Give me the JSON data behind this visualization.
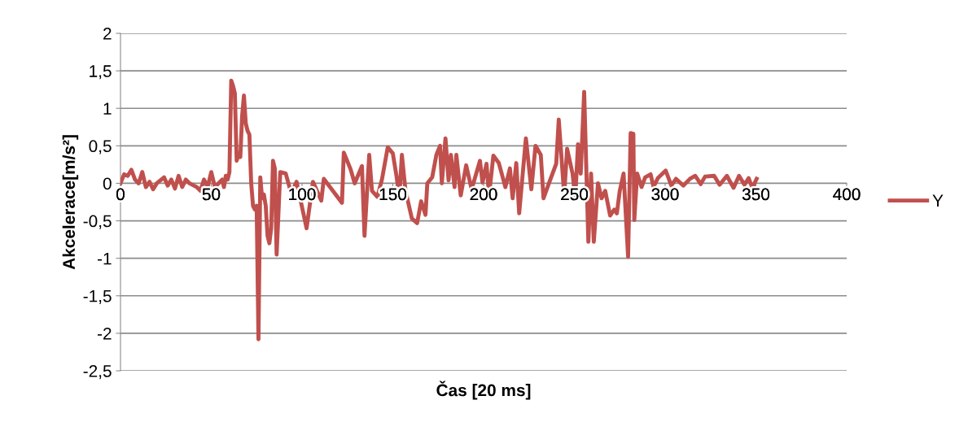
{
  "chart_data": {
    "type": "line",
    "xlabel": "Čas [20 ms]",
    "ylabel": "Akcelerace[m/s²]",
    "xlim": [
      0,
      400
    ],
    "xticks": [
      0,
      50,
      100,
      150,
      200,
      250,
      300,
      350,
      400
    ],
    "ylim": [
      -2.5,
      2
    ],
    "yticks": [
      {
        "value": -2.5,
        "label": "-2,5"
      },
      {
        "value": -2,
        "label": "-2"
      },
      {
        "value": -1.5,
        "label": "-1,5"
      },
      {
        "value": -1,
        "label": "-1"
      },
      {
        "value": -0.5,
        "label": "-0,5"
      },
      {
        "value": 0,
        "label": "0"
      },
      {
        "value": 0.5,
        "label": "0,5"
      },
      {
        "value": 1,
        "label": "1"
      },
      {
        "value": 1.5,
        "label": "1,5"
      },
      {
        "value": 2,
        "label": "2"
      }
    ],
    "grid": "y",
    "legend": "right",
    "marker": "none",
    "line_style": "solid",
    "series": [
      {
        "name": "Y",
        "color": "#c0504d",
        "x": [
          0,
          2,
          4,
          6,
          8,
          10,
          12,
          14,
          16,
          18,
          20,
          24,
          26,
          28,
          30,
          32,
          34,
          36,
          38,
          42,
          44,
          46,
          48,
          50,
          52,
          54,
          56,
          57,
          58,
          59,
          60,
          61,
          62,
          63,
          64,
          65,
          66,
          67,
          68,
          69,
          70,
          71,
          72,
          73,
          74,
          75,
          76,
          77,
          78,
          79,
          80,
          81,
          82,
          83,
          84,
          85,
          86,
          88,
          91,
          94,
          97,
          102.5,
          106,
          110.6,
          112,
          122,
          123,
          126.7,
          129,
          133,
          134.4,
          137,
          138.5,
          141.5,
          144,
          147.2,
          150,
          152,
          153.6,
          155,
          157,
          160.5,
          163.4,
          165.6,
          168,
          169,
          171.7,
          174,
          176,
          177,
          179,
          180.7,
          182,
          184,
          185,
          187.4,
          190.4,
          193.4,
          198,
          199.4,
          201.6,
          203,
          205.4,
          208.4,
          212,
          214.5,
          216,
          218,
          219.6,
          223.3,
          226.3,
          228.6,
          231.5,
          233,
          236,
          240,
          241.4,
          244.4,
          246,
          249,
          250.5,
          252,
          253.5,
          255.4,
          257.7,
          259.2,
          260.7,
          263,
          265,
          267,
          269.7,
          272,
          273.4,
          275,
          277.1,
          279.6,
          281,
          282.5,
          283,
          284.6,
          287,
          289,
          292,
          293.6,
          296,
          300.3,
          303.4,
          306,
          310,
          313.7,
          316.6,
          319.6,
          322,
          327,
          330,
          334,
          337.7,
          340.7,
          343.7,
          346,
          348,
          350.4
        ],
        "values": [
          0,
          0.12,
          0.1,
          0.18,
          0.05,
          0,
          0.15,
          -0.05,
          0.02,
          -0.08,
          0,
          0.08,
          -0.03,
          0.05,
          -0.07,
          0.1,
          -0.05,
          0.05,
          0,
          -0.05,
          -0.1,
          0.05,
          -0.05,
          0.15,
          -0.05,
          0,
          0.05,
          -0.05,
          0.1,
          0.05,
          0.15,
          1.37,
          1.3,
          1.2,
          0.3,
          0.4,
          0.35,
          0.9,
          1.17,
          0.8,
          0.7,
          0.65,
          0,
          -0.3,
          -0.35,
          -0.3,
          -2.08,
          0.08,
          -0.2,
          -0.15,
          -0.3,
          -0.7,
          -0.8,
          -0.6,
          0.3,
          0.2,
          -0.95,
          0.15,
          0.13,
          -0.13,
          0.02,
          -0.6,
          0.02,
          -0.23,
          0.06,
          -0.26,
          0.41,
          0.19,
          0,
          0.23,
          -0.7,
          0.38,
          -0.1,
          -0.18,
          0.05,
          0.48,
          0.4,
          0.1,
          -0.18,
          0.38,
          -0.1,
          -0.47,
          -0.53,
          -0.24,
          -0.42,
          0,
          0.08,
          0.38,
          0.5,
          0,
          0.6,
          0.04,
          0.38,
          -0.05,
          0.38,
          -0.16,
          0.24,
          -0.08,
          0.3,
          0.01,
          0.26,
          -0.16,
          0.37,
          0.27,
          -0.05,
          0.2,
          -0.2,
          0.27,
          -0.4,
          0.6,
          -0.08,
          0.5,
          0.38,
          -0.2,
          0,
          0.26,
          0.85,
          -0.16,
          0.46,
          0.13,
          -0.2,
          0.52,
          0.13,
          1.22,
          -0.78,
          0.13,
          -0.78,
          0,
          -0.2,
          -0.1,
          -0.43,
          -0.35,
          -0.4,
          -0.1,
          0.13,
          -0.98,
          0.67,
          0.66,
          -0.49,
          0.13,
          -0.05,
          0.08,
          0.12,
          -0.05,
          0.07,
          0.17,
          -0.03,
          0.06,
          -0.03,
          0.06,
          0.1,
          -0.01,
          0.09,
          0.1,
          -0.02,
          0.1,
          -0.06,
          0.1,
          -0.02,
          0.07,
          -0.06,
          0.06
        ]
      }
    ]
  }
}
